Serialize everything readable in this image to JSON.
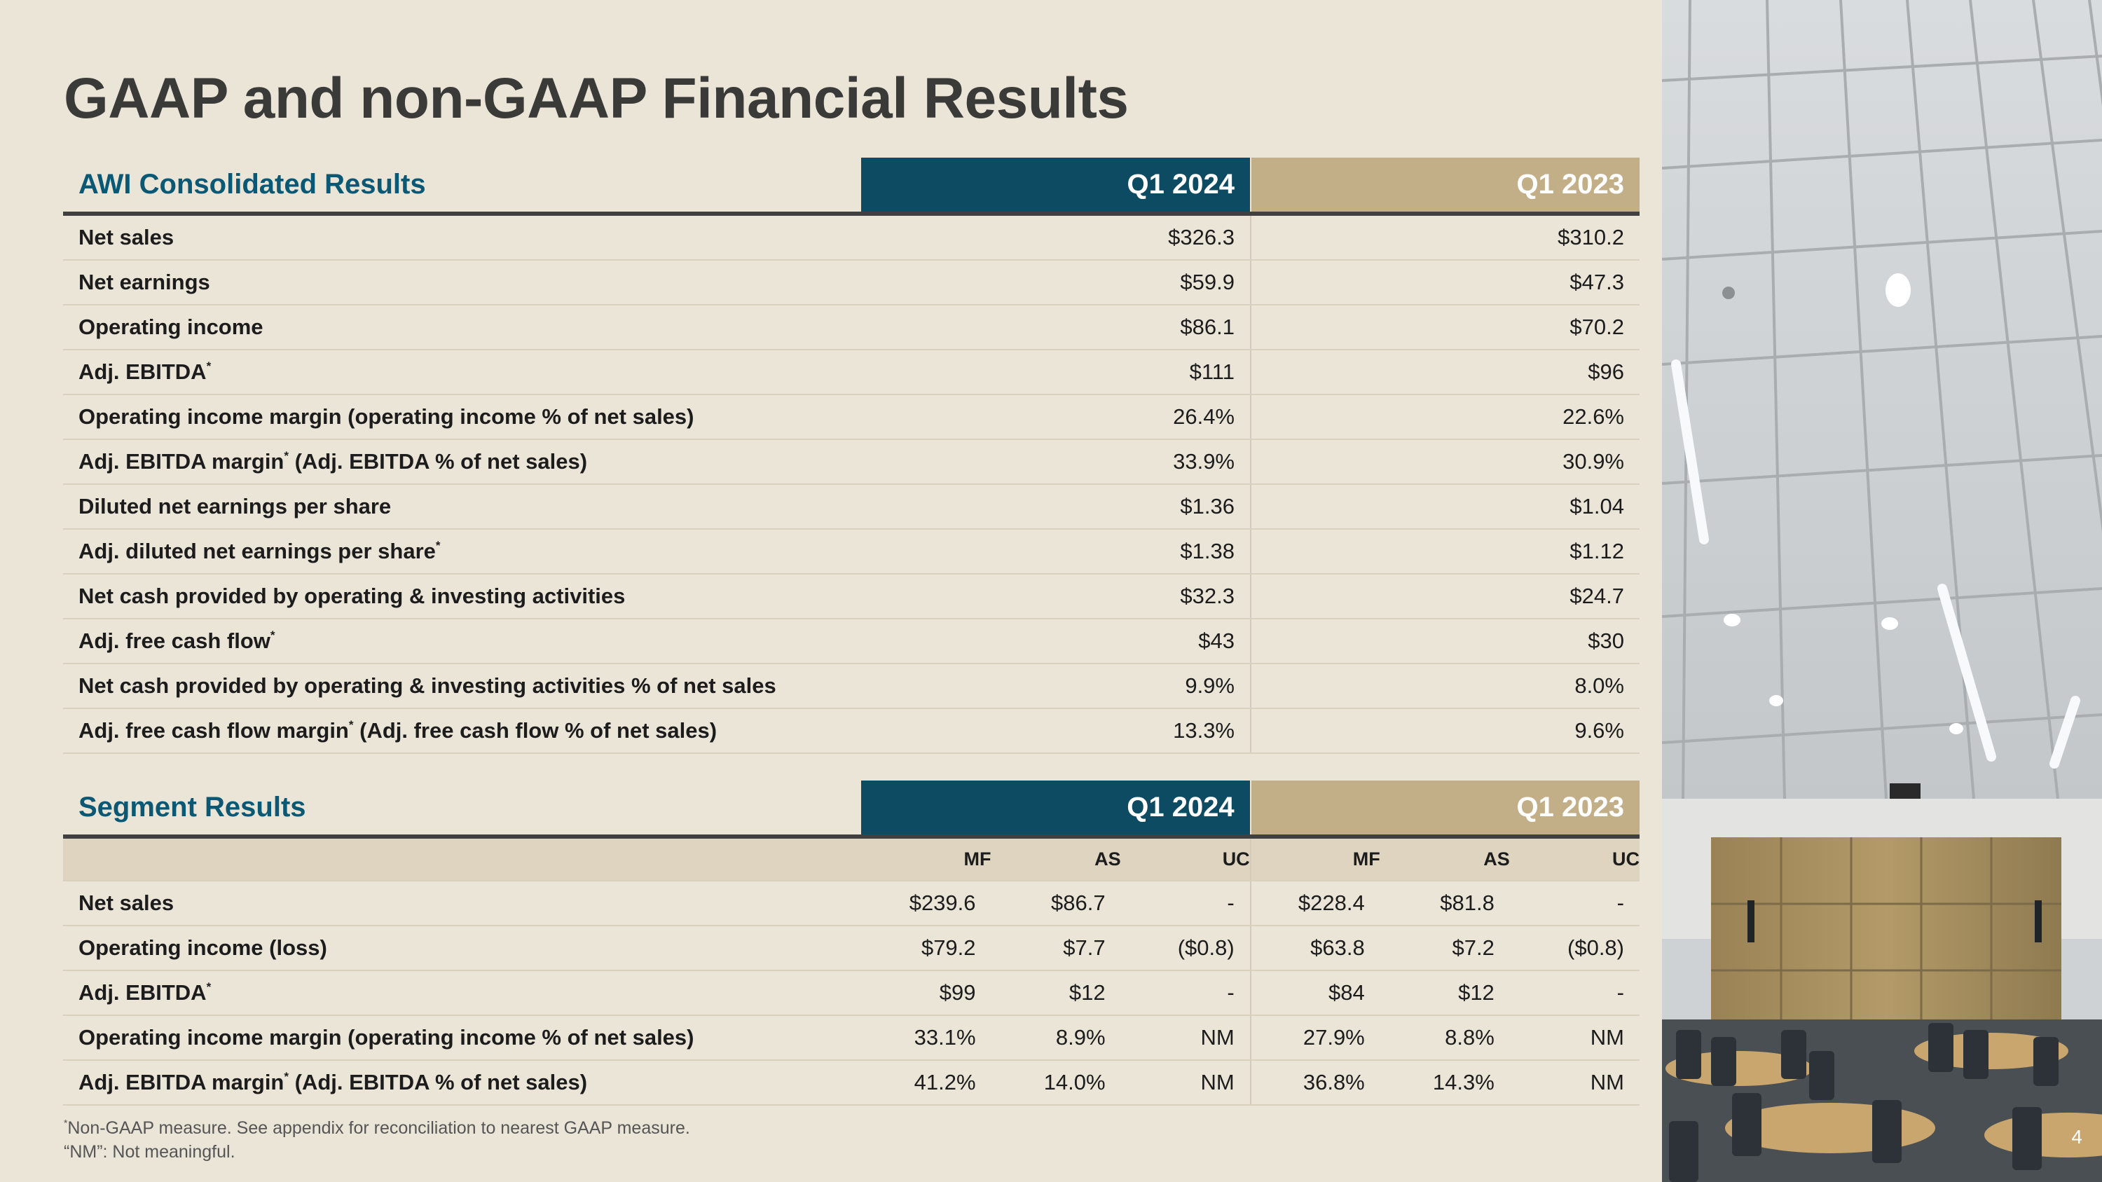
{
  "title": "GAAP and non-GAAP Financial Results",
  "colors": {
    "background": "#ebe5d8",
    "header_2024": "#0d4b63",
    "header_2023": "#c2af87",
    "section_title": "#0b5874"
  },
  "consolidated": {
    "title": "AWI Consolidated Results",
    "col_2024": "Q1 2024",
    "col_2023": "Q1 2023",
    "rows": [
      {
        "label": "Net sales",
        "asterisk": "",
        "suffix": "",
        "q2024": "$326.3",
        "q2023": "$310.2"
      },
      {
        "label": "Net earnings",
        "asterisk": "",
        "suffix": "",
        "q2024": "$59.9",
        "q2023": "$47.3"
      },
      {
        "label": "Operating income",
        "asterisk": "",
        "suffix": "",
        "q2024": "$86.1",
        "q2023": "$70.2"
      },
      {
        "label": "Adj. EBITDA",
        "asterisk": "*",
        "suffix": "",
        "q2024": "$111",
        "q2023": "$96"
      },
      {
        "label": "Operating income margin (operating income % of net sales)",
        "asterisk": "",
        "suffix": "",
        "q2024": "26.4%",
        "q2023": "22.6%"
      },
      {
        "label": "Adj. EBITDA margin",
        "asterisk": "*",
        "suffix": " (Adj. EBITDA % of net sales)",
        "q2024": "33.9%",
        "q2023": "30.9%"
      },
      {
        "label": "Diluted net earnings per share",
        "asterisk": "",
        "suffix": "",
        "q2024": "$1.36",
        "q2023": "$1.04"
      },
      {
        "label": "Adj. diluted net earnings per share",
        "asterisk": "*",
        "suffix": "",
        "q2024": "$1.38",
        "q2023": "$1.12"
      },
      {
        "label": "Net cash provided by operating & investing activities",
        "asterisk": "",
        "suffix": "",
        "q2024": "$32.3",
        "q2023": "$24.7"
      },
      {
        "label": "Adj. free cash flow",
        "asterisk": "*",
        "suffix": "",
        "q2024": "$43",
        "q2023": "$30"
      },
      {
        "label": "Net cash provided by operating & investing activities % of net sales",
        "asterisk": "",
        "suffix": "",
        "q2024": "9.9%",
        "q2023": "8.0%"
      },
      {
        "label": "Adj. free cash flow margin",
        "asterisk": "*",
        "suffix": " (Adj. free cash flow % of net sales)",
        "q2024": "13.3%",
        "q2023": "9.6%"
      }
    ]
  },
  "segment": {
    "title": "Segment Results",
    "col_2024": "Q1 2024",
    "col_2023": "Q1 2023",
    "subheaders": [
      "MF",
      "AS",
      "UC",
      "MF",
      "AS",
      "UC"
    ],
    "rows": [
      {
        "label": "Net sales",
        "asterisk": "",
        "suffix": "",
        "values": [
          "$239.6",
          "$86.7",
          "-",
          "$228.4",
          "$81.8",
          "-"
        ]
      },
      {
        "label": "Operating income (loss)",
        "asterisk": "",
        "suffix": "",
        "values": [
          "$79.2",
          "$7.7",
          "($0.8)",
          "$63.8",
          "$7.2",
          "($0.8)"
        ]
      },
      {
        "label": "Adj. EBITDA",
        "asterisk": "*",
        "suffix": "",
        "values": [
          "$99",
          "$12",
          "-",
          "$84",
          "$12",
          "-"
        ]
      },
      {
        "label": "Operating income margin (operating income % of net sales)",
        "asterisk": "",
        "suffix": "",
        "values": [
          "33.1%",
          "8.9%",
          "NM",
          "27.9%",
          "8.8%",
          "NM"
        ]
      },
      {
        "label": "Adj. EBITDA margin",
        "asterisk": "*",
        "suffix": " (Adj. EBITDA % of net sales)",
        "values": [
          "41.2%",
          "14.0%",
          "NM",
          "36.8%",
          "14.3%",
          "NM"
        ]
      }
    ]
  },
  "footnotes": {
    "asterisk": "*",
    "line1": "Non-GAAP measure. See appendix for reconciliation to nearest GAAP measure.",
    "line2": "“NM”: Not meaningful."
  },
  "page_number": "4",
  "photo_icon": "ceiling-photo-icon"
}
